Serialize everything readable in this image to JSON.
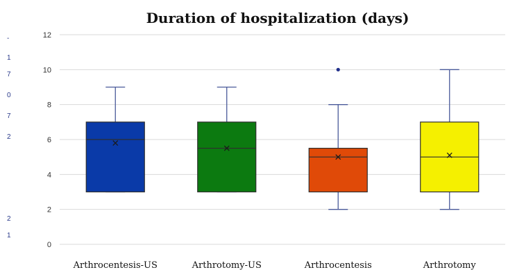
{
  "chart_data": {
    "type": "box",
    "title": "Duration of hospitalization (days)",
    "xlabel": "",
    "ylabel": "",
    "ylim": [
      0,
      12
    ],
    "yticks": [
      0,
      2,
      4,
      6,
      8,
      10,
      12
    ],
    "grid": true,
    "legend": "none",
    "categories": [
      "Arthrocentesis-US",
      "Arthrotomy-US",
      "Arthrocentesis",
      "Arthrotomy"
    ],
    "boxes": [
      {
        "category": "Arthrocentesis-US",
        "min": 3,
        "q1": 3,
        "median": 6,
        "q3": 7,
        "max": 9,
        "mean": 5.8,
        "outliers": [],
        "color": "#0a3aa8"
      },
      {
        "category": "Arthrotomy-US",
        "min": 3,
        "q1": 3,
        "median": 5.5,
        "q3": 7,
        "max": 9,
        "mean": 5.5,
        "outliers": [],
        "color": "#0c7a10"
      },
      {
        "category": "Arthrocentesis",
        "min": 2,
        "q1": 3,
        "median": 5,
        "q3": 5.5,
        "max": 8,
        "mean": 5.0,
        "outliers": [
          10
        ],
        "color": "#e04a08"
      },
      {
        "category": "Arthrotomy",
        "min": 2,
        "q1": 3,
        "median": 5,
        "q3": 7,
        "max": 10,
        "mean": 5.1,
        "outliers": [],
        "color": "#f5f000"
      }
    ]
  },
  "colors": {
    "whisker": "#4a5a9a",
    "grid": "#d9d9d9",
    "box_border": "#2e2e2e",
    "left_fragments": "#2a3a8a"
  },
  "left_edge_fragments": [
    "-",
    "1",
    "7",
    "0",
    "7",
    "2",
    "2",
    "1"
  ]
}
